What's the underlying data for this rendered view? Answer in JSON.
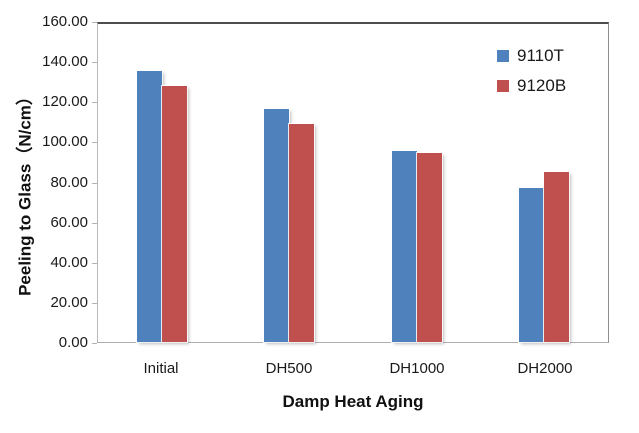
{
  "chart_data": {
    "type": "bar",
    "title": "",
    "categories": [
      "Initial",
      "DH500",
      "DH1000",
      "DH2000"
    ],
    "series": [
      {
        "name": "9110T",
        "color": "#4f81bd",
        "values": [
          136.5,
          117.0,
          96.0,
          77.5
        ]
      },
      {
        "name": "9120B",
        "color": "#c0504d",
        "values": [
          129.0,
          109.5,
          95.0,
          85.5
        ]
      }
    ],
    "xlabel": "Damp Heat Aging",
    "ylabel": "Peeling to Glass（N/cm）",
    "ylim": [
      0,
      160
    ],
    "ytick_step": 20,
    "ytick_labels": [
      "0.00",
      "20.00",
      "40.00",
      "60.00",
      "80.00",
      "100.00",
      "120.00",
      "140.00",
      "160.00"
    ],
    "grid": false,
    "legend_position": "top-right-inside",
    "colors": {
      "series_9110T": "#4f81bd",
      "series_9120B": "#c0504d",
      "axis_line": "#b3b3b3",
      "plot_top_border": "#4d4d4d",
      "text": "#1a1a1a",
      "background": "#ffffff"
    }
  }
}
